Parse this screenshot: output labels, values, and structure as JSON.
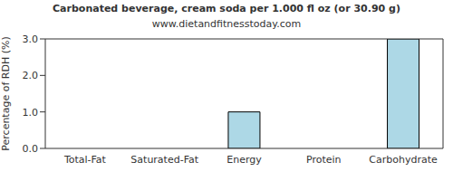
{
  "chart_data": {
    "type": "bar",
    "title": "Carbonated beverage, cream soda per 1.000 fl oz (or 30.90 g)",
    "subtitle": "www.dietandfitnesstoday.com",
    "y_label": "Percentage of RDH (%)",
    "categories": [
      "Total-Fat",
      "Saturated-Fat",
      "Energy",
      "Protein",
      "Carbohydrate"
    ],
    "values": [
      0,
      0,
      1,
      0,
      3
    ],
    "color": "#add8e6",
    "ylim": [
      0,
      3
    ],
    "yticks": [
      {
        "value": 0,
        "label": "0.0"
      },
      {
        "value": 1,
        "label": "1.0"
      },
      {
        "value": 2,
        "label": "2.0"
      },
      {
        "value": 3,
        "label": "3.0"
      }
    ],
    "grid": false
  }
}
